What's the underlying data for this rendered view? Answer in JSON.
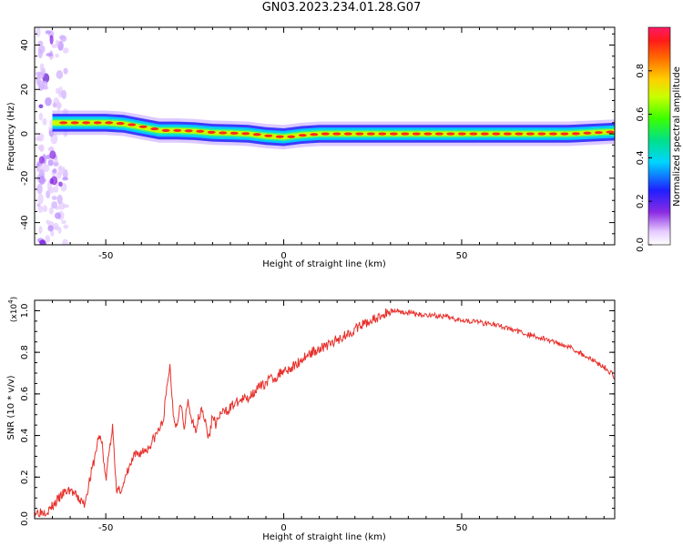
{
  "chart_data": [
    {
      "type": "heatmap",
      "title": "GN03.2023.234.01.28.G07",
      "xlabel": "Height of straight line (km)",
      "ylabel": "Frequency (Hz)",
      "xlim": [
        -70,
        93
      ],
      "ylim": [
        -50,
        48
      ],
      "xticks": [
        -50,
        0,
        50
      ],
      "yticks": [
        -40,
        -20,
        0,
        20,
        40
      ],
      "grid": false,
      "ridge": {
        "x": [
          -65,
          -60,
          -55,
          -50,
          -45,
          -40,
          -35,
          -30,
          -25,
          -20,
          -15,
          -10,
          -5,
          0,
          5,
          10,
          20,
          30,
          40,
          50,
          60,
          70,
          80,
          93
        ],
        "y": [
          5,
          5,
          5,
          5,
          4.5,
          3,
          1.5,
          1.5,
          1.2,
          0.5,
          0.3,
          0,
          -1,
          -1.5,
          -0.5,
          0,
          0,
          0,
          0,
          0,
          0,
          0,
          0,
          1
        ]
      },
      "colorbar": {
        "label": "Normalized spectral amplitude",
        "ticks": [
          "0.0",
          "0.2",
          "0.4",
          "0.6",
          "0.8"
        ],
        "range": [
          0,
          1
        ]
      }
    },
    {
      "type": "line",
      "xlabel": "Height of straight line (km)",
      "ylabel": "SNR (10 * v/v)",
      "scale_label": "(x10",
      "scale_exp": "4",
      "scale_close": ")",
      "xlim": [
        -70,
        93
      ],
      "ylim": [
        0,
        1.05
      ],
      "xticks": [
        -50,
        0,
        50
      ],
      "yticks": [
        "0.0",
        "0.2",
        "0.4",
        "0.6",
        "0.8",
        "1.0"
      ],
      "series": [
        {
          "color": "#e8302b",
          "x": [
            -70,
            -66,
            -62,
            -60,
            -58,
            -56,
            -55,
            -53,
            -52,
            -51,
            -50,
            -49,
            -48,
            -47,
            -46,
            -45,
            -44,
            -42,
            -40,
            -38,
            -36,
            -34,
            -33,
            -32,
            -31,
            -30,
            -29,
            -28,
            -27,
            -25,
            -23,
            -21,
            -20,
            -19,
            -18,
            -16,
            -14,
            -12,
            -10,
            -8,
            -6,
            -4,
            -2,
            0,
            2,
            4,
            6,
            8,
            10,
            12,
            14,
            16,
            18,
            20,
            22,
            24,
            26,
            28,
            30,
            32,
            34,
            36,
            38,
            40,
            42,
            44,
            46,
            48,
            50,
            52,
            54,
            56,
            58,
            60,
            62,
            64,
            66,
            68,
            70,
            72,
            74,
            76,
            78,
            80,
            82,
            84,
            86,
            88,
            90,
            92,
            93
          ],
          "y": [
            0.03,
            0.04,
            0.12,
            0.14,
            0.1,
            0.07,
            0.15,
            0.3,
            0.4,
            0.36,
            0.18,
            0.33,
            0.45,
            0.12,
            0.14,
            0.16,
            0.22,
            0.3,
            0.32,
            0.34,
            0.4,
            0.46,
            0.6,
            0.74,
            0.5,
            0.44,
            0.58,
            0.42,
            0.56,
            0.42,
            0.54,
            0.38,
            0.5,
            0.45,
            0.5,
            0.52,
            0.55,
            0.57,
            0.58,
            0.62,
            0.64,
            0.67,
            0.68,
            0.72,
            0.72,
            0.75,
            0.78,
            0.8,
            0.82,
            0.83,
            0.85,
            0.87,
            0.89,
            0.91,
            0.93,
            0.95,
            0.96,
            0.98,
            1.0,
            1.0,
            0.99,
            0.99,
            0.98,
            0.98,
            0.98,
            0.97,
            0.97,
            0.96,
            0.96,
            0.95,
            0.95,
            0.94,
            0.94,
            0.93,
            0.92,
            0.91,
            0.9,
            0.89,
            0.88,
            0.87,
            0.86,
            0.85,
            0.84,
            0.83,
            0.81,
            0.79,
            0.77,
            0.75,
            0.73,
            0.7,
            0.68
          ]
        }
      ]
    }
  ]
}
